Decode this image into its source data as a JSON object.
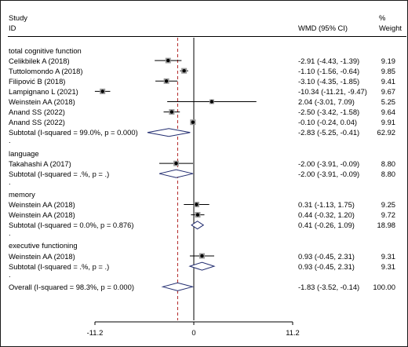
{
  "header": {
    "study_1": "Study",
    "study_2": "ID",
    "wmd": "WMD (95% CI)",
    "weight_1": "%",
    "weight_2": "Weight"
  },
  "colors": {
    "diamond": "#1f2a6e",
    "null_line": "#000000",
    "overall_line": "#b02020"
  },
  "chart_data": {
    "type": "forest",
    "measure": "WMD (95% CI)",
    "xaxis_ticks": [
      -11.2,
      0,
      11.2
    ],
    "null_value": 0,
    "overall_line_value": -1.83,
    "rows": [
      {
        "kind": "group",
        "label": "total cognitive function"
      },
      {
        "kind": "study",
        "label": "Celikbilek A (2018)",
        "est": -2.91,
        "lo": -4.43,
        "hi": -1.39,
        "ci": "-2.91 (-4.43, -1.39)",
        "weight": "9.19"
      },
      {
        "kind": "study",
        "label": "Tuttolomondo A (2018)",
        "est": -1.1,
        "lo": -1.56,
        "hi": -0.64,
        "ci": "-1.10 (-1.56, -0.64)",
        "weight": "9.85"
      },
      {
        "kind": "study",
        "label": "Filipović B (2018)",
        "est": -3.1,
        "lo": -4.35,
        "hi": -1.85,
        "ci": "-3.10 (-4.35, -1.85)",
        "weight": "9.41"
      },
      {
        "kind": "study",
        "label": "Lampignano L (2021)",
        "est": -10.34,
        "lo": -11.21,
        "hi": -9.47,
        "ci": "-10.34 (-11.21, -9.47)",
        "weight": "9.67"
      },
      {
        "kind": "study",
        "label": "Weinstein AA (2018)",
        "est": 2.04,
        "lo": -3.01,
        "hi": 7.09,
        "ci": "2.04 (-3.01, 7.09)",
        "weight": "5.25"
      },
      {
        "kind": "study",
        "label": "Anand SS (2022)",
        "est": -2.5,
        "lo": -3.42,
        "hi": -1.58,
        "ci": "-2.50 (-3.42, -1.58)",
        "weight": "9.64"
      },
      {
        "kind": "study",
        "label": "Anand SS (2022)",
        "est": -0.1,
        "lo": -0.24,
        "hi": 0.04,
        "ci": "-0.10 (-0.24, 0.04)",
        "weight": "9.91"
      },
      {
        "kind": "subtotal",
        "label": "Subtotal  (I-squared = 99.0%, p = 0.000)",
        "est": -2.83,
        "lo": -5.25,
        "hi": -0.41,
        "ci": "-2.83 (-5.25, -0.41)",
        "weight": "62.92"
      },
      {
        "kind": "dot",
        "label": "."
      },
      {
        "kind": "group",
        "label": "language"
      },
      {
        "kind": "study",
        "label": "Takahashi A (2017)",
        "est": -2.0,
        "lo": -3.91,
        "hi": -0.09,
        "ci": "-2.00 (-3.91, -0.09)",
        "weight": "8.80"
      },
      {
        "kind": "subtotal",
        "label": "Subtotal  (I-squared = .%, p = .)",
        "est": -2.0,
        "lo": -3.91,
        "hi": -0.09,
        "ci": "-2.00 (-3.91, -0.09)",
        "weight": "8.80"
      },
      {
        "kind": "dot",
        "label": "."
      },
      {
        "kind": "group",
        "label": "memory"
      },
      {
        "kind": "study",
        "label": "Weinstein AA (2018)",
        "est": 0.31,
        "lo": -1.13,
        "hi": 1.75,
        "ci": "0.31 (-1.13, 1.75)",
        "weight": "9.25"
      },
      {
        "kind": "study",
        "label": "Weinstein AA (2018)",
        "est": 0.44,
        "lo": -0.32,
        "hi": 1.2,
        "ci": "0.44 (-0.32, 1.20)",
        "weight": "9.72"
      },
      {
        "kind": "subtotal",
        "label": "Subtotal  (I-squared = 0.0%, p = 0.876)",
        "est": 0.41,
        "lo": -0.26,
        "hi": 1.09,
        "ci": "0.41 (-0.26, 1.09)",
        "weight": "18.98"
      },
      {
        "kind": "dot",
        "label": "."
      },
      {
        "kind": "group",
        "label": "executive functioning"
      },
      {
        "kind": "study",
        "label": "Weinstein AA (2018)",
        "est": 0.93,
        "lo": -0.45,
        "hi": 2.31,
        "ci": "0.93 (-0.45, 2.31)",
        "weight": "9.31"
      },
      {
        "kind": "subtotal",
        "label": "Subtotal  (I-squared = .%, p = .)",
        "est": 0.93,
        "lo": -0.45,
        "hi": 2.31,
        "ci": "0.93 (-0.45, 2.31)",
        "weight": "9.31"
      },
      {
        "kind": "dot",
        "label": "."
      },
      {
        "kind": "overall",
        "label": "Overall  (I-squared = 98.3%, p = 0.000)",
        "est": -1.83,
        "lo": -3.52,
        "hi": -0.14,
        "ci": "-1.83 (-3.52, -0.14)",
        "weight": "100.00"
      }
    ]
  }
}
